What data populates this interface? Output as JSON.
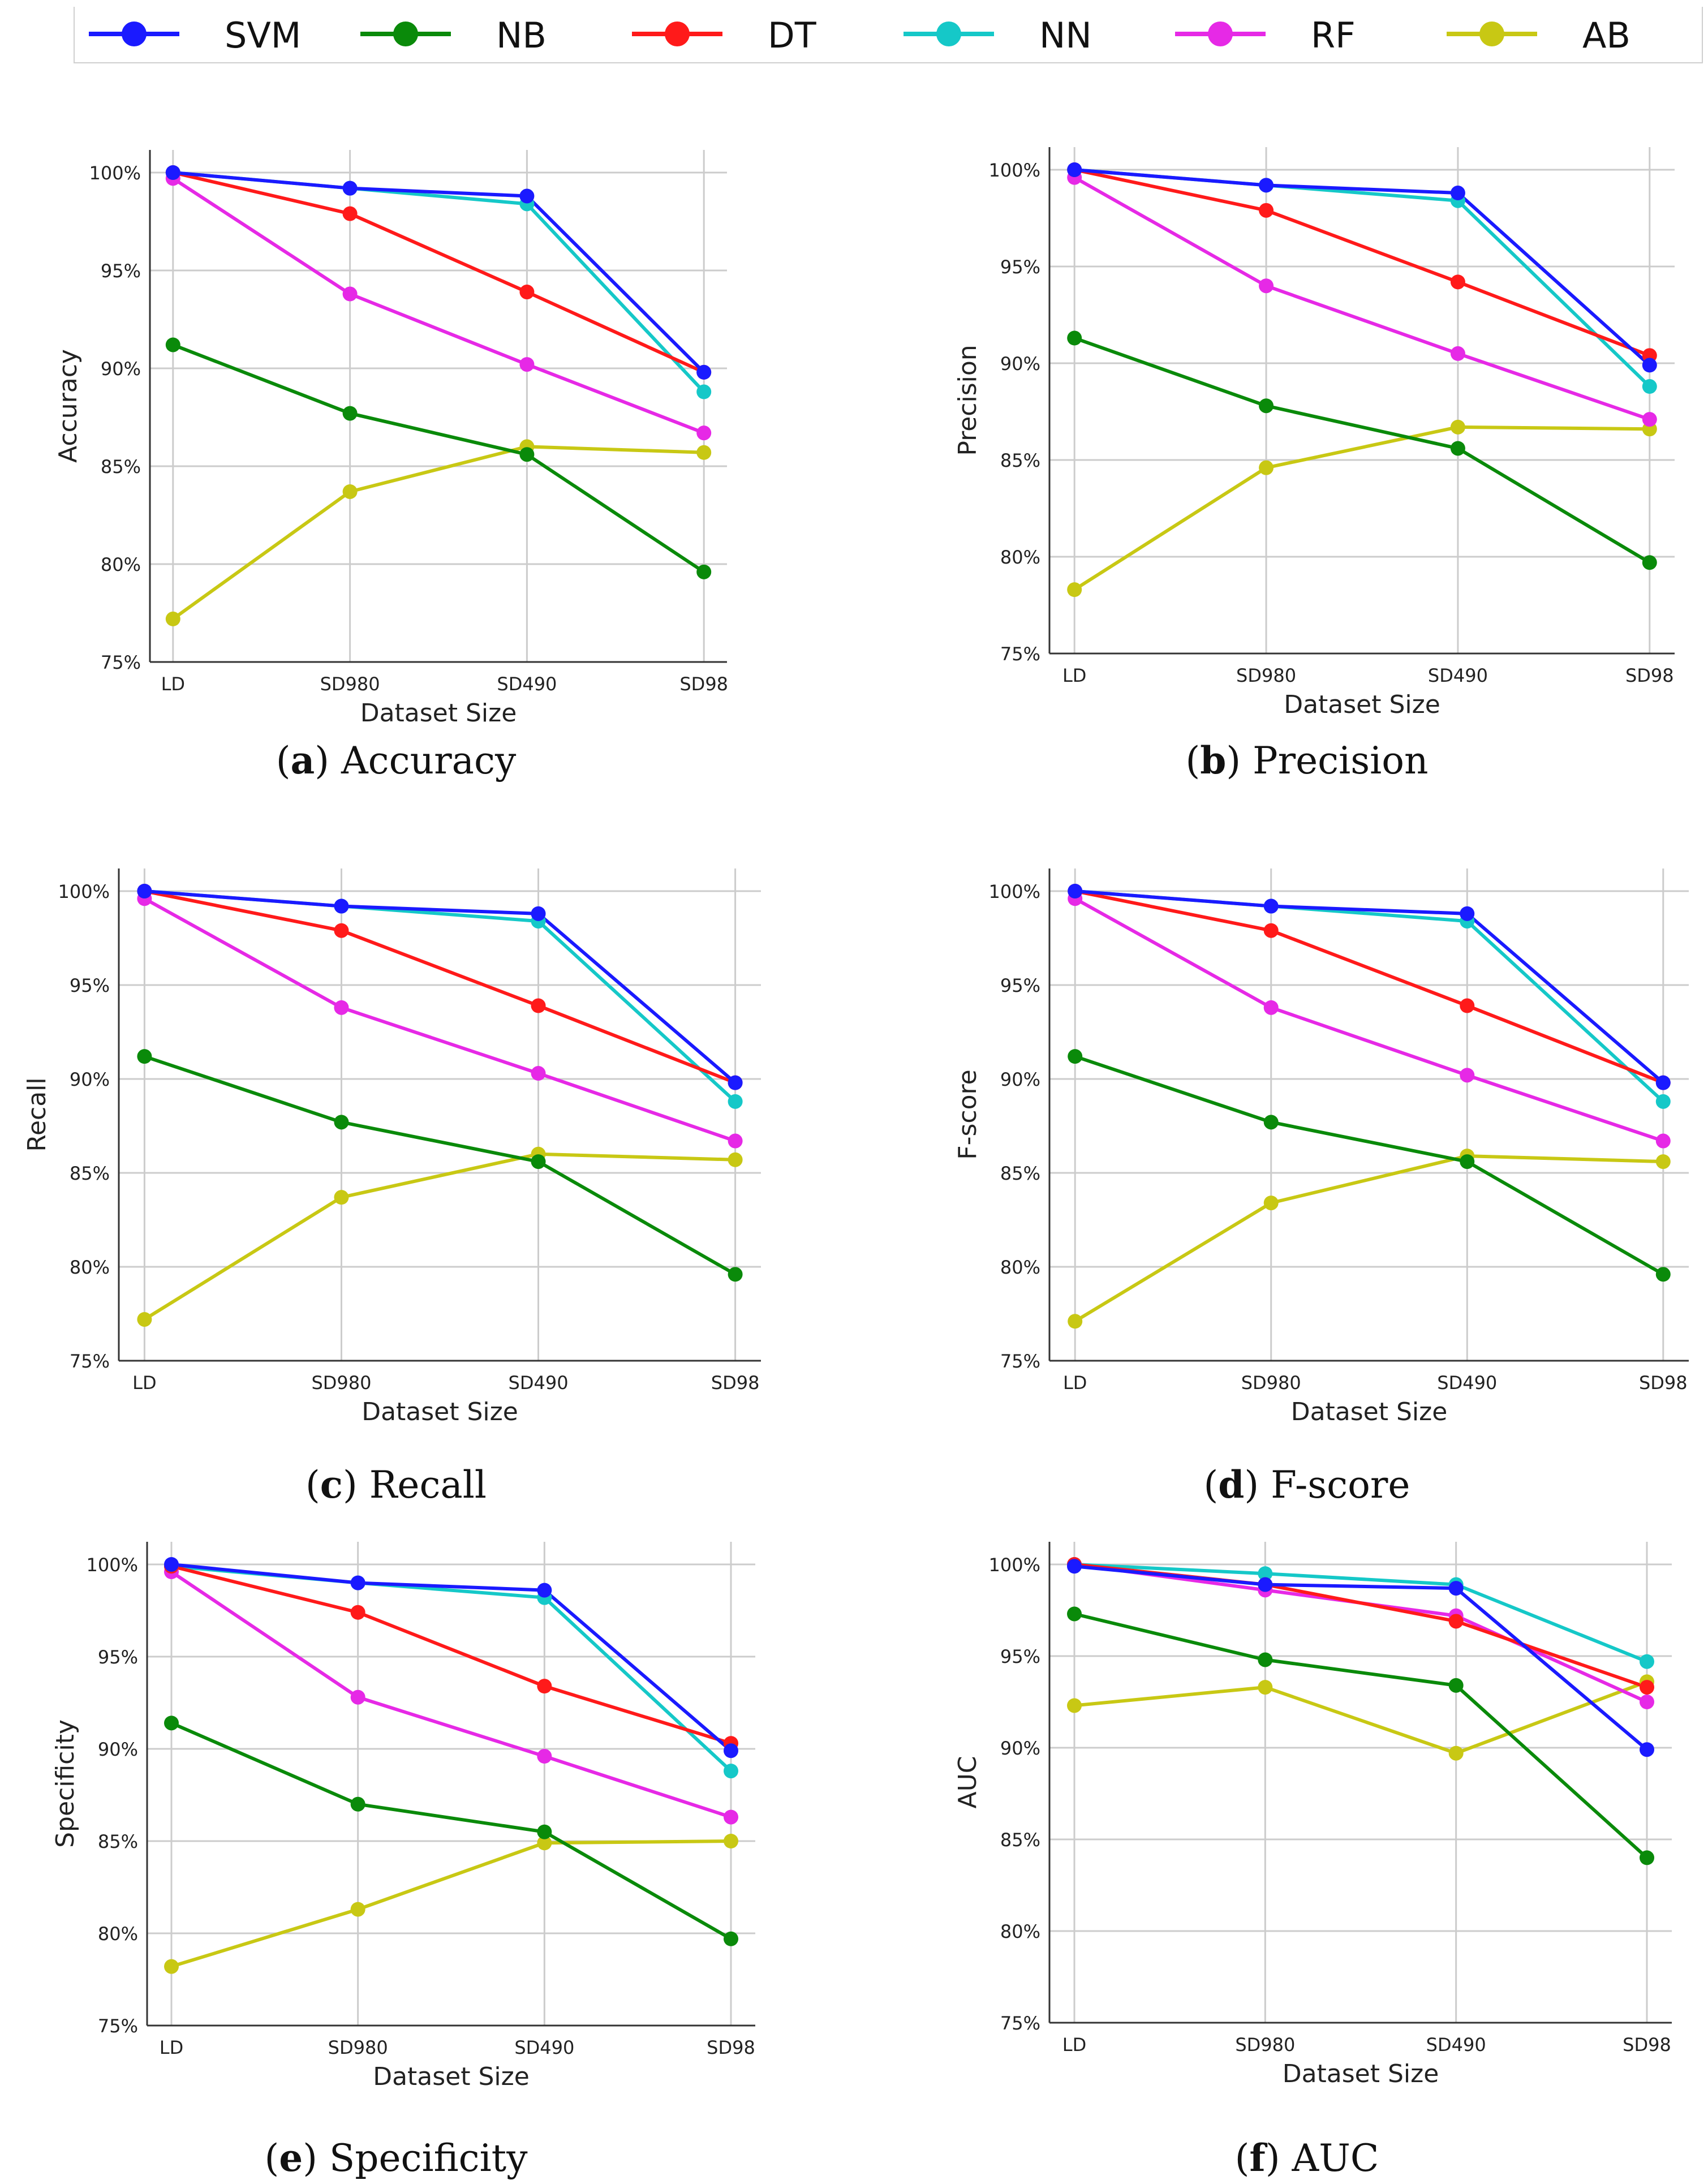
{
  "legend": [
    {
      "name": "SVM",
      "color": "#1a1aff"
    },
    {
      "name": "NB",
      "color": "#0a8a0a"
    },
    {
      "name": "DT",
      "color": "#ff1a1a"
    },
    {
      "name": "NN",
      "color": "#15c8c8"
    },
    {
      "name": "RF",
      "color": "#e629e6"
    },
    {
      "name": "AB",
      "color": "#c8c814"
    }
  ],
  "chart_data": [
    {
      "type": "line",
      "letter": "a",
      "caption": "Accuracy",
      "xlabel": "Dataset Size",
      "ylabel": "Accuracy",
      "categories": [
        "LD",
        "SD980",
        "SD490",
        "SD98"
      ],
      "ylim": [
        75,
        100
      ],
      "yticks": [
        "75%",
        "80%",
        "85%",
        "90%",
        "95%",
        "100%"
      ],
      "series": [
        {
          "name": "SVM",
          "values": [
            100,
            99.2,
            98.8,
            89.8
          ]
        },
        {
          "name": "NB",
          "values": [
            91.2,
            87.7,
            85.6,
            79.6
          ]
        },
        {
          "name": "DT",
          "values": [
            100,
            97.9,
            93.9,
            89.8
          ]
        },
        {
          "name": "NN",
          "values": [
            100,
            99.2,
            98.4,
            88.8
          ]
        },
        {
          "name": "RF",
          "values": [
            99.7,
            93.8,
            90.2,
            86.7
          ]
        },
        {
          "name": "AB",
          "values": [
            77.2,
            83.7,
            86.0,
            85.7
          ]
        }
      ]
    },
    {
      "type": "line",
      "letter": "b",
      "caption": "Precision",
      "xlabel": "Dataset Size",
      "ylabel": "Precision",
      "categories": [
        "LD",
        "SD980",
        "SD490",
        "SD98"
      ],
      "ylim": [
        75,
        100
      ],
      "yticks": [
        "75%",
        "80%",
        "85%",
        "90%",
        "95%",
        "100%"
      ],
      "series": [
        {
          "name": "SVM",
          "values": [
            100,
            99.2,
            98.8,
            89.9
          ]
        },
        {
          "name": "NB",
          "values": [
            91.3,
            87.8,
            85.6,
            79.7
          ]
        },
        {
          "name": "DT",
          "values": [
            100,
            97.9,
            94.2,
            90.4
          ]
        },
        {
          "name": "NN",
          "values": [
            100,
            99.2,
            98.4,
            88.8
          ]
        },
        {
          "name": "RF",
          "values": [
            99.6,
            94.0,
            90.5,
            87.1
          ]
        },
        {
          "name": "AB",
          "values": [
            78.3,
            84.6,
            86.7,
            86.6
          ]
        }
      ]
    },
    {
      "type": "line",
      "letter": "c",
      "caption": "Recall",
      "xlabel": "Dataset Size",
      "ylabel": "Recall",
      "categories": [
        "LD",
        "SD980",
        "SD490",
        "SD98"
      ],
      "ylim": [
        75,
        100
      ],
      "yticks": [
        "75%",
        "80%",
        "85%",
        "90%",
        "95%",
        "100%"
      ],
      "series": [
        {
          "name": "SVM",
          "values": [
            100,
            99.2,
            98.8,
            89.8
          ]
        },
        {
          "name": "NB",
          "values": [
            91.2,
            87.7,
            85.6,
            79.6
          ]
        },
        {
          "name": "DT",
          "values": [
            100,
            97.9,
            93.9,
            89.8
          ]
        },
        {
          "name": "NN",
          "values": [
            100,
            99.2,
            98.4,
            88.8
          ]
        },
        {
          "name": "RF",
          "values": [
            99.6,
            93.8,
            90.3,
            86.7
          ]
        },
        {
          "name": "AB",
          "values": [
            77.2,
            83.7,
            86.0,
            85.7
          ]
        }
      ]
    },
    {
      "type": "line",
      "letter": "d",
      "caption": "F-score",
      "xlabel": "Dataset Size",
      "ylabel": "F-score",
      "categories": [
        "LD",
        "SD980",
        "SD490",
        "SD98"
      ],
      "ylim": [
        75,
        100
      ],
      "yticks": [
        "75%",
        "80%",
        "85%",
        "90%",
        "95%",
        "100%"
      ],
      "series": [
        {
          "name": "SVM",
          "values": [
            100,
            99.2,
            98.8,
            89.8
          ]
        },
        {
          "name": "NB",
          "values": [
            91.2,
            87.7,
            85.6,
            79.6
          ]
        },
        {
          "name": "DT",
          "values": [
            100,
            97.9,
            93.9,
            89.8
          ]
        },
        {
          "name": "NN",
          "values": [
            100,
            99.2,
            98.4,
            88.8
          ]
        },
        {
          "name": "RF",
          "values": [
            99.6,
            93.8,
            90.2,
            86.7
          ]
        },
        {
          "name": "AB",
          "values": [
            77.1,
            83.4,
            85.9,
            85.6
          ]
        }
      ]
    },
    {
      "type": "line",
      "letter": "e",
      "caption": "Specificity",
      "xlabel": "Dataset Size",
      "ylabel": "Specificity",
      "categories": [
        "LD",
        "SD980",
        "SD490",
        "SD98"
      ],
      "ylim": [
        75,
        100
      ],
      "yticks": [
        "75%",
        "80%",
        "85%",
        "90%",
        "95%",
        "100%"
      ],
      "series": [
        {
          "name": "SVM",
          "values": [
            100,
            99.0,
            98.6,
            89.9
          ]
        },
        {
          "name": "NB",
          "values": [
            91.4,
            87.0,
            85.5,
            79.7
          ]
        },
        {
          "name": "DT",
          "values": [
            99.9,
            97.4,
            93.4,
            90.3
          ]
        },
        {
          "name": "NN",
          "values": [
            99.9,
            99.0,
            98.2,
            88.8
          ]
        },
        {
          "name": "RF",
          "values": [
            99.6,
            92.8,
            89.6,
            86.3
          ]
        },
        {
          "name": "AB",
          "values": [
            78.2,
            81.3,
            84.9,
            85.0
          ]
        }
      ]
    },
    {
      "type": "line",
      "letter": "f",
      "caption": "AUC",
      "xlabel": "Dataset Size",
      "ylabel": "AUC",
      "categories": [
        "LD",
        "SD980",
        "SD490",
        "SD98"
      ],
      "ylim": [
        75,
        100
      ],
      "yticks": [
        "75%",
        "80%",
        "85%",
        "90%",
        "95%",
        "100%"
      ],
      "series": [
        {
          "name": "SVM",
          "values": [
            99.9,
            98.9,
            98.7,
            89.9
          ]
        },
        {
          "name": "NB",
          "values": [
            97.3,
            94.8,
            93.4,
            84.0
          ]
        },
        {
          "name": "DT",
          "values": [
            100,
            98.9,
            96.9,
            93.3
          ]
        },
        {
          "name": "NN",
          "values": [
            100,
            99.5,
            98.9,
            94.7
          ]
        },
        {
          "name": "RF",
          "values": [
            100,
            98.6,
            97.2,
            92.5
          ]
        },
        {
          "name": "AB",
          "values": [
            92.3,
            93.3,
            89.7,
            93.6
          ]
        }
      ]
    }
  ]
}
